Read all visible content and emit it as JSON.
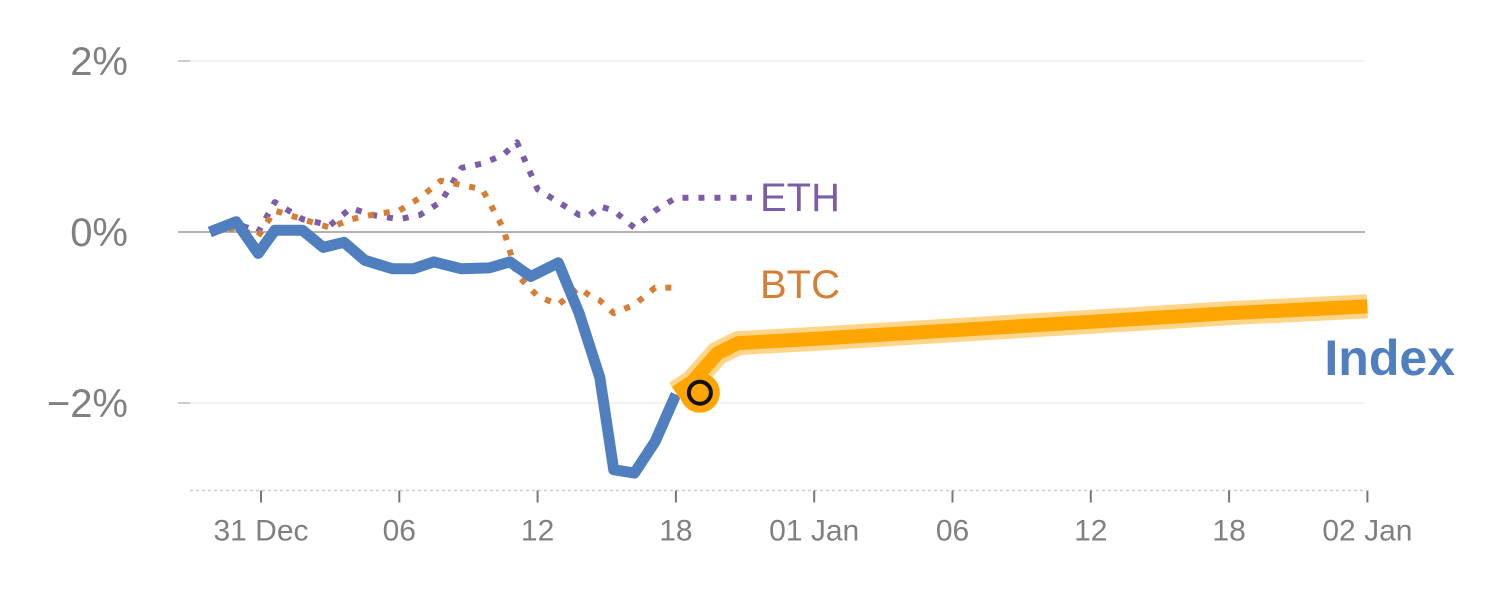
{
  "chart_data": {
    "type": "line",
    "title": "",
    "xlabel": "",
    "ylabel": "",
    "ylim": [
      -3.0,
      2.0
    ],
    "y_ticks": [
      {
        "value": 2,
        "label": "2%"
      },
      {
        "value": 0,
        "label": "0%"
      },
      {
        "value": -2,
        "label": "−2%"
      }
    ],
    "x_ticks": [
      {
        "x": 0,
        "label": "31 Dec"
      },
      {
        "x": 1,
        "label": "06"
      },
      {
        "x": 2,
        "label": "12"
      },
      {
        "x": 3,
        "label": "18"
      },
      {
        "x": 4,
        "label": "01 Jan"
      },
      {
        "x": 5,
        "label": "06"
      },
      {
        "x": 6,
        "label": "12"
      },
      {
        "x": 7,
        "label": "18"
      },
      {
        "x": 8,
        "label": "02 Jan"
      }
    ],
    "x_range": [
      -0.37,
      8.0
    ],
    "grid": true,
    "series": [
      {
        "name": "ETH",
        "style": "dotted",
        "color": "#7b5ea7",
        "x": [
          -0.35,
          -0.18,
          -0.02,
          0.1,
          0.3,
          0.5,
          0.65,
          0.8,
          1.0,
          1.15,
          1.3,
          1.45,
          1.6,
          1.75,
          1.85,
          2.0,
          2.15,
          2.3,
          2.38,
          2.45,
          2.55,
          2.7,
          2.85,
          3.0,
          3.15,
          3.3,
          3.45,
          3.55
        ],
        "y": [
          0.0,
          0.1,
          0.0,
          0.35,
          0.15,
          0.08,
          0.28,
          0.2,
          0.15,
          0.2,
          0.35,
          0.75,
          0.8,
          0.9,
          1.05,
          0.5,
          0.35,
          0.2,
          0.2,
          0.3,
          0.25,
          0.05,
          0.25,
          0.4,
          0.4,
          0.4,
          0.4,
          0.4
        ]
      },
      {
        "name": "BTC",
        "style": "dotted",
        "color": "#d57e35",
        "x": [
          -0.35,
          -0.18,
          -0.02,
          0.1,
          0.3,
          0.5,
          0.65,
          0.8,
          1.0,
          1.15,
          1.3,
          1.45,
          1.6,
          1.75,
          1.85,
          2.0,
          2.15,
          2.3,
          2.38,
          2.45,
          2.55,
          2.7,
          2.85,
          3.0
        ],
        "y": [
          0.0,
          0.05,
          -0.05,
          0.25,
          0.15,
          0.05,
          0.15,
          0.2,
          0.25,
          0.4,
          0.6,
          0.55,
          0.5,
          0.05,
          -0.5,
          -0.75,
          -0.85,
          -0.65,
          -0.75,
          -0.8,
          -0.95,
          -0.85,
          -0.65,
          -0.65
        ]
      },
      {
        "name": "Index",
        "style": "solid",
        "color": "#4f7fbf",
        "x": [
          -0.37,
          -0.18,
          -0.02,
          0.1,
          0.3,
          0.45,
          0.6,
          0.75,
          0.95,
          1.1,
          1.25,
          1.45,
          1.65,
          1.8,
          1.95,
          2.15,
          2.3,
          2.45,
          2.55,
          2.7,
          2.85,
          3.0
        ],
        "y": [
          0.0,
          0.12,
          -0.25,
          0.02,
          0.02,
          -0.18,
          -0.12,
          -0.33,
          -0.43,
          -0.43,
          -0.35,
          -0.43,
          -0.42,
          -0.35,
          -0.52,
          -0.36,
          -0.95,
          -1.7,
          -2.78,
          -2.82,
          -2.45,
          -1.9
        ]
      },
      {
        "style": "highlight",
        "color": "#ffa500",
        "x": [
          3.0,
          3.12,
          3.3,
          3.45,
          4.0,
          5.0,
          6.0,
          7.0,
          8.0
        ],
        "y": [
          -1.88,
          -1.75,
          -1.42,
          -1.3,
          -1.25,
          -1.15,
          -1.05,
          -0.95,
          -0.87
        ]
      }
    ],
    "marker": {
      "x": 3.0,
      "y": -1.88
    },
    "labels": {
      "eth": "ETH",
      "btc": "BTC",
      "index": "Index"
    },
    "colors": {
      "eth": "#7b5ea7",
      "btc": "#d57e35",
      "index": "#4f7fbf",
      "highlight": "#ffa500",
      "grid": "#e6e6e6",
      "zero": "#999999",
      "tick_text": "#808080"
    }
  }
}
